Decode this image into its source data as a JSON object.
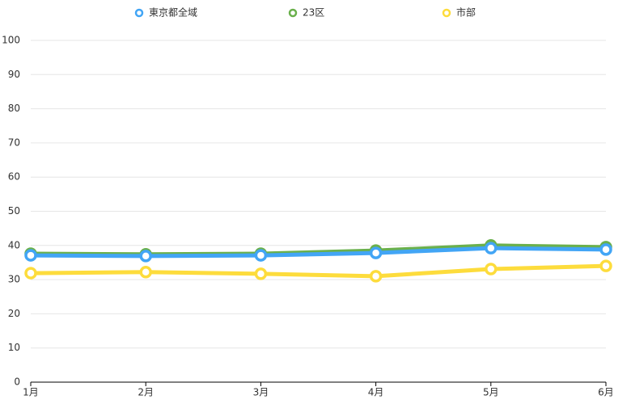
{
  "chart_data": {
    "type": "line",
    "categories": [
      "1月",
      "2月",
      "3月",
      "4月",
      "5月",
      "6月"
    ],
    "series": [
      {
        "name": "東京都全域",
        "color": "#42a5f5",
        "values": [
          37.1,
          36.9,
          37.1,
          37.8,
          39.2,
          38.8
        ]
      },
      {
        "name": "23区",
        "color": "#6ab04c",
        "values": [
          37.6,
          37.4,
          37.6,
          38.5,
          40.0,
          39.5
        ]
      },
      {
        "name": "市部",
        "color": "#fddc3c",
        "values": [
          31.9,
          32.2,
          31.7,
          31.0,
          33.1,
          34.0
        ]
      }
    ],
    "ylim": [
      0,
      100
    ],
    "yticks": [
      0,
      10,
      20,
      30,
      40,
      50,
      60,
      70,
      80,
      90,
      100
    ],
    "grid": true
  }
}
